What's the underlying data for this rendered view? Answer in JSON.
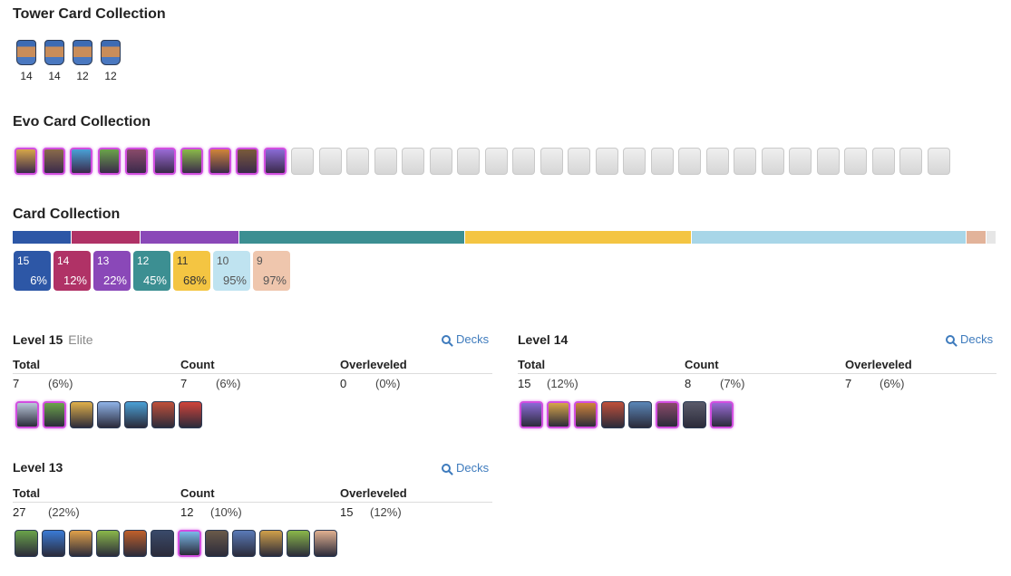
{
  "tower_section": {
    "title": "Tower Card Collection",
    "towers": [
      {
        "icon": "princess-tower-icon",
        "level": "14"
      },
      {
        "icon": "cannoneer-tower-icon",
        "level": "14"
      },
      {
        "icon": "dagger-duchess-tower-icon",
        "level": "12"
      },
      {
        "icon": "royal-chef-tower-icon",
        "level": "12"
      }
    ]
  },
  "evo_section": {
    "title": "Evo Card Collection",
    "owned_count": 10,
    "unowned_count": 24
  },
  "card_collection": {
    "title": "Card Collection",
    "bar_segments": [
      {
        "level": "15",
        "fraction": 0.06,
        "color": "#2d57a6"
      },
      {
        "level": "14",
        "fraction": 0.07,
        "color": "#b03266"
      },
      {
        "level": "13",
        "fraction": 0.1,
        "color": "#8a48b8"
      },
      {
        "level": "12",
        "fraction": 0.23,
        "color": "#3c8f92"
      },
      {
        "level": "11",
        "fraction": 0.23,
        "color": "#f4c542"
      },
      {
        "level": "10",
        "fraction": 0.28,
        "color": "#a8d6e8"
      },
      {
        "level": "9",
        "fraction": 0.02,
        "color": "#e2b39a"
      },
      {
        "level": "other",
        "fraction": 0.01,
        "color": "#e6e6e6"
      }
    ],
    "level_badges": [
      {
        "level": "15",
        "percent": "6%",
        "bg": "#2d57a6",
        "fg": "#ffffff"
      },
      {
        "level": "14",
        "percent": "12%",
        "bg": "#b03266",
        "fg": "#ffffff"
      },
      {
        "level": "13",
        "percent": "22%",
        "bg": "#8a48b8",
        "fg": "#ffffff"
      },
      {
        "level": "12",
        "percent": "45%",
        "bg": "#3c8f92",
        "fg": "#ffffff"
      },
      {
        "level": "11",
        "percent": "68%",
        "bg": "#f4c542",
        "fg": "#333333"
      },
      {
        "level": "10",
        "percent": "95%",
        "bg": "#bfe3f0",
        "fg": "#555555"
      },
      {
        "level": "9",
        "percent": "97%",
        "bg": "#efc6ad",
        "fg": "#555555"
      }
    ]
  },
  "levels": {
    "decks_label": "Decks",
    "col_total": "Total",
    "col_count": "Count",
    "col_overleveled": "Overleveled",
    "l15": {
      "title": "Level 15",
      "subtitle": "Elite",
      "total": "7",
      "total_pct": "(6%)",
      "count": "7",
      "count_pct": "(6%)",
      "over": "0",
      "over_pct": "(0%)",
      "cards": [
        {
          "name": "skeleton-army-evo-card",
          "evo": true,
          "color": "#b9c7d9"
        },
        {
          "name": "goblin-cage-evo-card",
          "evo": true,
          "color": "#6aa34a"
        },
        {
          "name": "goblin-barrel-card",
          "evo": false,
          "color": "#e0b04a"
        },
        {
          "name": "ice-spirit-card",
          "evo": false,
          "color": "#8fb3e8"
        },
        {
          "name": "ice-golem-card",
          "evo": false,
          "color": "#4aa0d6"
        },
        {
          "name": "inferno-dragon-card",
          "evo": false,
          "color": "#c0503a"
        },
        {
          "name": "mighty-miner-card",
          "evo": false,
          "color": "#d0433a"
        }
      ]
    },
    "l14": {
      "title": "Level 14",
      "total": "15",
      "total_pct": "(12%)",
      "count": "8",
      "count_pct": "(7%)",
      "over": "7",
      "over_pct": "(6%)",
      "cards": [
        {
          "name": "wizard-evo-card",
          "evo": true,
          "color": "#8a6ad6"
        },
        {
          "name": "knight-evo-card",
          "evo": true,
          "color": "#d6a54a"
        },
        {
          "name": "royal-giant-evo-card",
          "evo": true,
          "color": "#d0843a"
        },
        {
          "name": "hog-rider-card",
          "evo": false,
          "color": "#c0503a"
        },
        {
          "name": "bandit-card",
          "evo": false,
          "color": "#5a86b8"
        },
        {
          "name": "goblin-drill-evo-card",
          "evo": true,
          "color": "#8a4a6a"
        },
        {
          "name": "skeletons-card",
          "evo": false,
          "color": "#5a5a6a"
        },
        {
          "name": "tesla-evo-card",
          "evo": true,
          "color": "#9a6ad6"
        }
      ]
    },
    "l13": {
      "title": "Level 13",
      "total": "27",
      "total_pct": "(22%)",
      "count": "12",
      "count_pct": "(10%)",
      "over": "15",
      "over_pct": "(12%)",
      "cards": [
        {
          "name": "goblin-gang-card",
          "evo": false,
          "color": "#6aa34a"
        },
        {
          "name": "electro-spirit-card",
          "evo": false,
          "color": "#3a7ad6"
        },
        {
          "name": "fire-spirit-card",
          "evo": false,
          "color": "#e0a04a"
        },
        {
          "name": "spear-goblins-card",
          "evo": false,
          "color": "#8ab84a"
        },
        {
          "name": "fireball-card",
          "evo": false,
          "color": "#c0602a"
        },
        {
          "name": "drill-card",
          "evo": false,
          "color": "#3a4a6a"
        },
        {
          "name": "ice-spirit-evo-card",
          "evo": true,
          "color": "#7ab8e8"
        },
        {
          "name": "miner-card",
          "evo": false,
          "color": "#6a5a4a"
        },
        {
          "name": "royal-ghost-card",
          "evo": false,
          "color": "#5a7ab8"
        },
        {
          "name": "royal-delivery-card",
          "evo": false,
          "color": "#d0a04a"
        },
        {
          "name": "goblin-card",
          "evo": false,
          "color": "#8ab84a"
        },
        {
          "name": "giant-card",
          "evo": false,
          "color": "#e0b090"
        }
      ]
    }
  }
}
